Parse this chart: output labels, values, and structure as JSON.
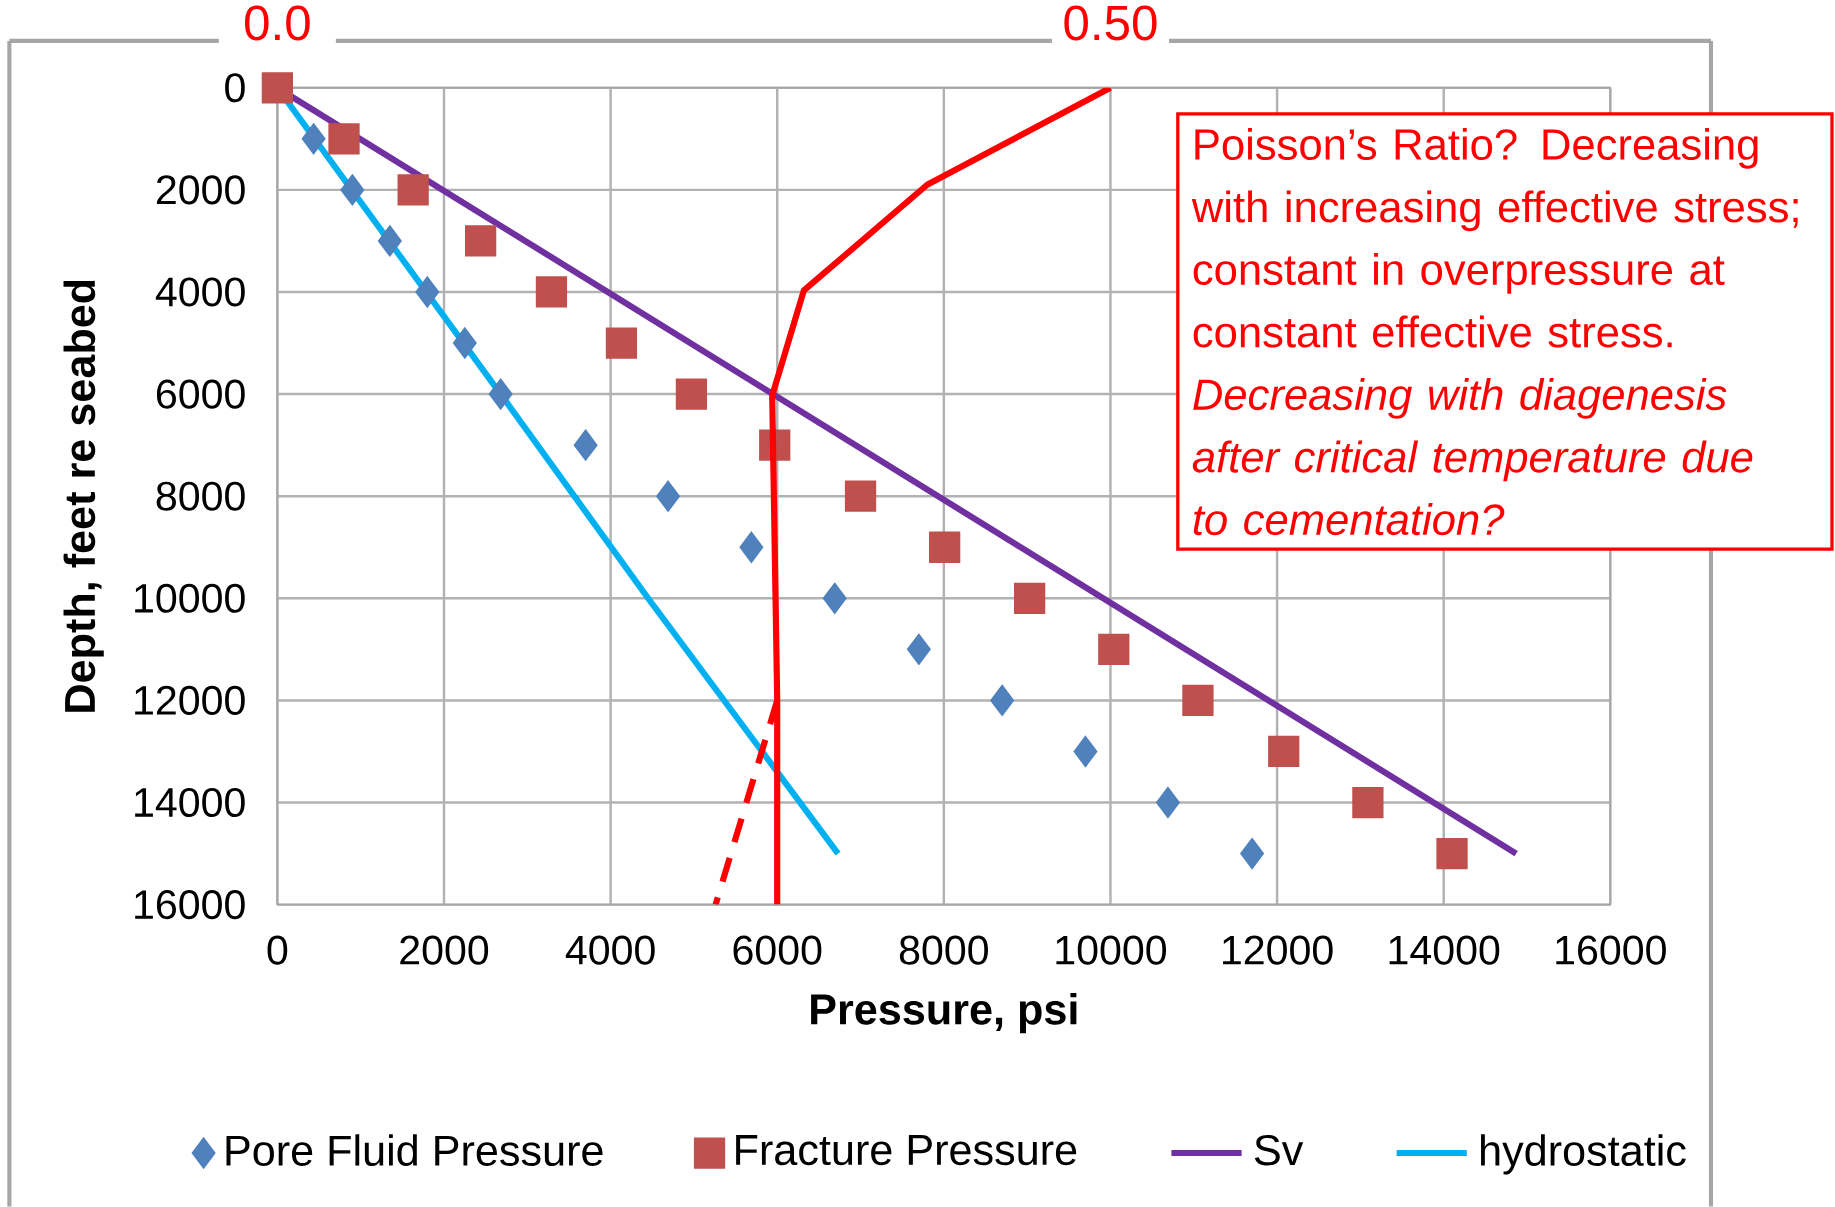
{
  "chart_data": {
    "type": "scatter",
    "xlabel": "Pressure, psi",
    "ylabel": "Depth, feet re seabed",
    "xlim": [
      0,
      16000
    ],
    "xticks": [
      0,
      2000,
      4000,
      6000,
      8000,
      10000,
      12000,
      14000,
      16000
    ],
    "ylim": [
      16000,
      0
    ],
    "yticks": [
      0,
      2000,
      4000,
      6000,
      8000,
      10000,
      12000,
      14000,
      16000
    ],
    "x2lim": [
      0,
      0.8
    ],
    "x2ticks": [
      {
        "value": 0,
        "label": "0.0"
      },
      {
        "value": 0.5,
        "label": "0.50"
      }
    ],
    "grid": true,
    "legend": "bottom",
    "series": [
      {
        "name": "Pore Fluid Pressure",
        "marker": "diamond",
        "color": "#4f81bd",
        "x": [
          435,
          900,
          1350,
          1800,
          2250,
          2680,
          3700,
          4690,
          5690,
          6690,
          7700,
          8700,
          9700,
          10690,
          11700
        ],
        "values": [
          1000,
          2000,
          3000,
          4000,
          5000,
          6000,
          7000,
          8000,
          9000,
          10000,
          11000,
          12000,
          13000,
          14000,
          15000
        ]
      },
      {
        "name": "Fracture Pressure",
        "marker": "square",
        "color": "#c0504d",
        "x": [
          0,
          800,
          1630,
          2440,
          3290,
          4130,
          4970,
          5970,
          7000,
          8010,
          9030,
          10040,
          11050,
          12080,
          13090,
          14100
        ],
        "values": [
          0,
          1000,
          2000,
          3000,
          4000,
          5000,
          6000,
          7000,
          8000,
          9000,
          10000,
          11000,
          12000,
          13000,
          14000,
          15000
        ]
      },
      {
        "name": "Sv",
        "type": "line",
        "color": "#7030a0",
        "x": [
          0,
          14870
        ],
        "values": [
          0,
          15000
        ]
      },
      {
        "name": "hydrostatic",
        "type": "line",
        "color": "#00b0f0",
        "x": [
          0,
          2680,
          4450,
          6730
        ],
        "values": [
          0,
          6000,
          10000,
          15000
        ]
      },
      {
        "type": "line",
        "axis": "x2",
        "color": "#ff0000",
        "x": [
          0.5,
          0.39,
          0.316,
          0.297,
          0.3,
          0.3
        ],
        "values": [
          0,
          1900,
          3970,
          6030,
          12000,
          16000
        ]
      },
      {
        "type": "line",
        "axis": "x2",
        "line_style": "dashed",
        "color": "#ff0000",
        "x": [
          0.3,
          0.263
        ],
        "values": [
          12000,
          16000
        ]
      }
    ],
    "annotations": [
      "Poisson’s Ratio? Decreasing with increasing effective stress; constant in overpressure at constant effective stress.  *Decreasing with diagenesis after critical temperature due to cementation?*"
    ]
  }
}
